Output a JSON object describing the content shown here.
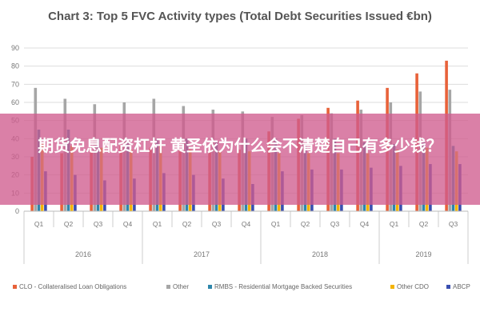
{
  "chart_data": {
    "type": "bar",
    "title": "Chart 3: Top 5 FVC Activity types (Total Debt Securities Issued €bn)",
    "ylim": [
      0,
      90
    ],
    "yticks": [
      0,
      10,
      20,
      30,
      40,
      50,
      60,
      70,
      80,
      90
    ],
    "grid": true,
    "legend_position": "bottom",
    "categories": [
      "Q1",
      "Q2",
      "Q3",
      "Q4",
      "Q1",
      "Q2",
      "Q3",
      "Q4",
      "Q1",
      "Q2",
      "Q3",
      "Q4",
      "Q1",
      "Q2",
      "Q3"
    ],
    "groups": [
      {
        "label": "2016",
        "count": 4
      },
      {
        "label": "2017",
        "count": 4
      },
      {
        "label": "2018",
        "count": 4
      },
      {
        "label": "2019",
        "count": 3
      }
    ],
    "series": [
      {
        "name": "CLO - Collateralised Loan Obligations",
        "color": "#e8623a",
        "values": [
          30,
          32,
          33,
          36,
          35,
          34,
          34,
          34,
          44,
          51,
          57,
          61,
          68,
          76,
          83
        ]
      },
      {
        "name": "Other",
        "color": "#a6a6a6",
        "values": [
          68,
          62,
          59,
          60,
          62,
          58,
          56,
          55,
          52,
          53,
          54,
          56,
          60,
          66,
          67
        ]
      },
      {
        "name": "RMBS - Residential Mortgage Backed Securities",
        "color": "#2e86ab",
        "values": [
          45,
          45,
          40,
          40,
          40,
          40,
          38,
          40,
          40,
          36,
          40,
          38,
          37,
          38,
          36
        ]
      },
      {
        "name": "Other CDO",
        "color": "#f4b400",
        "values": [
          38,
          36,
          35,
          34,
          37,
          34,
          33,
          33,
          32,
          32,
          32,
          32,
          34,
          35,
          33
        ]
      },
      {
        "name": "ABCP",
        "color": "#3a4fb0",
        "values": [
          22,
          20,
          17,
          18,
          21,
          20,
          18,
          15,
          22,
          23,
          23,
          24,
          25,
          26,
          26
        ]
      }
    ]
  },
  "overlay": {
    "text": "期货免息配资杠杆 黄圣依为什么会不清楚自己有多少钱？"
  }
}
